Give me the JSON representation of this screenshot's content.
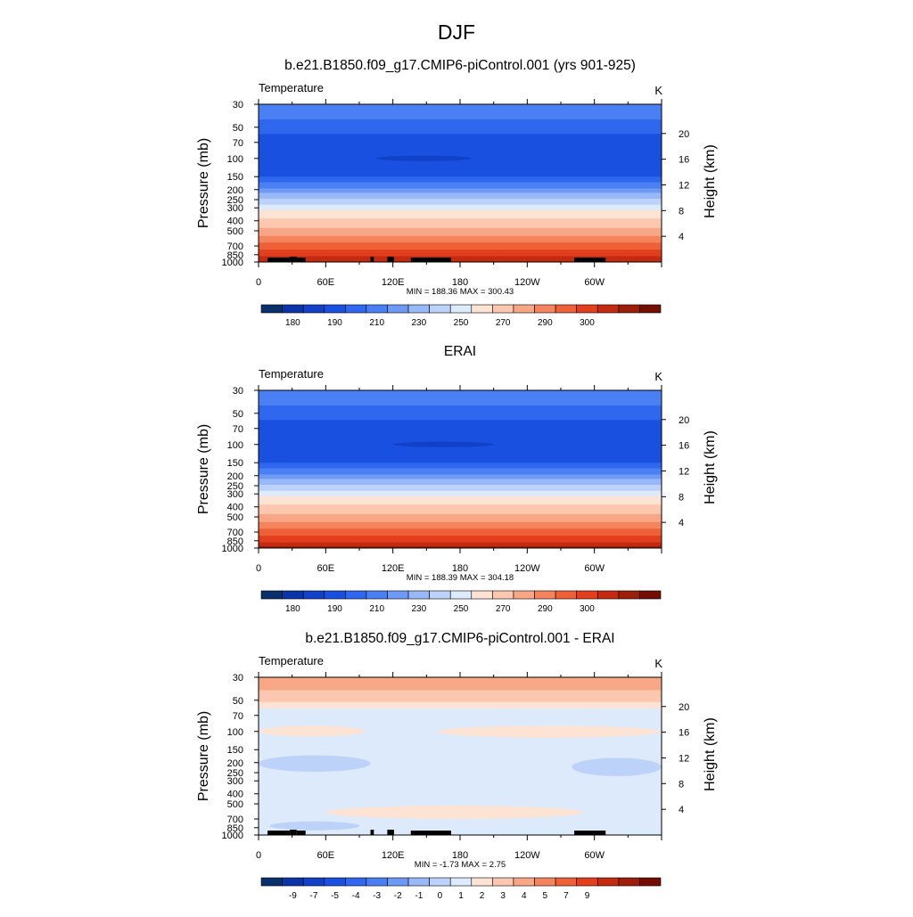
{
  "title": "DJF",
  "colors": {
    "palette": [
      "#08306b",
      "#0a34a8",
      "#1140c9",
      "#1a50e0",
      "#2f67ee",
      "#4a80f3",
      "#6e9af6",
      "#99b8f8",
      "#bcd2f9",
      "#ddeafc",
      "#fde3d3",
      "#fbc7ae",
      "#f8a786",
      "#f4845e",
      "#ee6038",
      "#e13f1d",
      "#c42a10",
      "#9c1d08",
      "#740e02"
    ]
  },
  "chart_data": [
    {
      "type": "heatmap",
      "subtitle": "b.e21.B1850.f09_g17.CMIP6-piControl.001 (yrs 901-925)",
      "variable": "Temperature",
      "units": "K",
      "ylabel": "Pressure (mb)",
      "y2label": "Height (km)",
      "x_ticks": [
        "0",
        "60E",
        "120E",
        "180",
        "120W",
        "60W"
      ],
      "x_tick_lons": [
        0,
        60,
        120,
        180,
        240,
        300
      ],
      "xlim": [
        0,
        360
      ],
      "y_ticks": [
        "30",
        "50",
        "70",
        "100",
        "150",
        "200",
        "250",
        "300",
        "400",
        "500",
        "700",
        "850",
        "1000"
      ],
      "y_tick_values": [
        30,
        50,
        70,
        100,
        150,
        200,
        250,
        300,
        400,
        500,
        700,
        850,
        1000
      ],
      "ylim": [
        1000,
        30
      ],
      "y_scale": "log",
      "y2_ticks": [
        "20",
        "16",
        "12",
        "8",
        "4"
      ],
      "y2_tick_values": [
        20,
        16,
        12,
        8,
        4
      ],
      "stats": "MIN = 188.36  MAX = 300.43",
      "colorbar_labels": [
        "180",
        "190",
        "210",
        "230",
        "250",
        "270",
        "290",
        "300"
      ],
      "levels": [
        {
          "p_top": 30,
          "color_index": 5
        },
        {
          "p_top": 42,
          "color_index": 4
        },
        {
          "p_top": 58,
          "color_index": 3
        },
        {
          "p_top": 150,
          "color_index": 4
        },
        {
          "p_top": 170,
          "color_index": 5
        },
        {
          "p_top": 195,
          "color_index": 6
        },
        {
          "p_top": 215,
          "color_index": 7
        },
        {
          "p_top": 245,
          "color_index": 8
        },
        {
          "p_top": 280,
          "color_index": 9
        },
        {
          "p_top": 315,
          "color_index": 10
        },
        {
          "p_top": 380,
          "color_index": 11
        },
        {
          "p_top": 470,
          "color_index": 12
        },
        {
          "p_top": 560,
          "color_index": 13
        },
        {
          "p_top": 650,
          "color_index": 14
        },
        {
          "p_top": 760,
          "color_index": 15
        },
        {
          "p_top": 880,
          "color_index": 16
        }
      ],
      "blobs": [
        {
          "lon": [
            105,
            190
          ],
          "p": [
            94,
            106
          ],
          "color_index": 2
        }
      ],
      "topography": [
        [
          8,
          28
        ],
        [
          28,
          34
        ],
        [
          34,
          42
        ],
        [
          100,
          103
        ],
        [
          115,
          121
        ],
        [
          136,
          172
        ],
        [
          282,
          310
        ]
      ]
    },
    {
      "type": "heatmap",
      "subtitle": "ERAI",
      "variable": "Temperature",
      "units": "K",
      "ylabel": "Pressure (mb)",
      "y2label": "Height (km)",
      "x_ticks": [
        "0",
        "60E",
        "120E",
        "180",
        "120W",
        "60W"
      ],
      "x_tick_lons": [
        0,
        60,
        120,
        180,
        240,
        300
      ],
      "xlim": [
        0,
        360
      ],
      "y_ticks": [
        "30",
        "50",
        "70",
        "100",
        "150",
        "200",
        "250",
        "300",
        "400",
        "500",
        "700",
        "850",
        "1000"
      ],
      "y_tick_values": [
        30,
        50,
        70,
        100,
        150,
        200,
        250,
        300,
        400,
        500,
        700,
        850,
        1000
      ],
      "ylim": [
        1000,
        30
      ],
      "y_scale": "log",
      "y2_ticks": [
        "20",
        "16",
        "12",
        "8",
        "4"
      ],
      "y2_tick_values": [
        20,
        16,
        12,
        8,
        4
      ],
      "stats": "MIN = 188.39  MAX = 304.18",
      "colorbar_labels": [
        "180",
        "190",
        "210",
        "230",
        "250",
        "270",
        "290",
        "300"
      ],
      "levels": [
        {
          "p_top": 30,
          "color_index": 5
        },
        {
          "p_top": 42,
          "color_index": 4
        },
        {
          "p_top": 58,
          "color_index": 3
        },
        {
          "p_top": 150,
          "color_index": 4
        },
        {
          "p_top": 170,
          "color_index": 5
        },
        {
          "p_top": 195,
          "color_index": 6
        },
        {
          "p_top": 215,
          "color_index": 7
        },
        {
          "p_top": 245,
          "color_index": 8
        },
        {
          "p_top": 280,
          "color_index": 9
        },
        {
          "p_top": 315,
          "color_index": 10
        },
        {
          "p_top": 380,
          "color_index": 11
        },
        {
          "p_top": 470,
          "color_index": 12
        },
        {
          "p_top": 560,
          "color_index": 13
        },
        {
          "p_top": 650,
          "color_index": 14
        },
        {
          "p_top": 760,
          "color_index": 15
        },
        {
          "p_top": 880,
          "color_index": 16
        },
        {
          "p_top": 960,
          "color_index": 17
        }
      ],
      "blobs": [
        {
          "lon": [
            120,
            210
          ],
          "p": [
            94,
            106
          ],
          "color_index": 2
        }
      ],
      "topography": []
    },
    {
      "type": "heatmap",
      "subtitle": "b.e21.B1850.f09_g17.CMIP6-piControl.001 - ERAI",
      "variable": "Temperature",
      "units": "K",
      "ylabel": "Pressure (mb)",
      "y2label": "Height (km)",
      "x_ticks": [
        "0",
        "60E",
        "120E",
        "180",
        "120W",
        "60W"
      ],
      "x_tick_lons": [
        0,
        60,
        120,
        180,
        240,
        300
      ],
      "xlim": [
        0,
        360
      ],
      "y_ticks": [
        "30",
        "50",
        "70",
        "100",
        "150",
        "200",
        "250",
        "300",
        "400",
        "500",
        "700",
        "850",
        "1000"
      ],
      "y_tick_values": [
        30,
        50,
        70,
        100,
        150,
        200,
        250,
        300,
        400,
        500,
        700,
        850,
        1000
      ],
      "ylim": [
        1000,
        30
      ],
      "y_scale": "log",
      "y2_ticks": [
        "20",
        "16",
        "12",
        "8",
        "4"
      ],
      "y2_tick_values": [
        20,
        16,
        12,
        8,
        4
      ],
      "stats": "MIN =  -1.73  MAX =   2.75",
      "colorbar_labels": [
        "-9",
        "-7",
        "-5",
        "-4",
        "-3",
        "-2",
        "-1",
        "0",
        "1",
        "2",
        "3",
        "4",
        "5",
        "7",
        "9"
      ],
      "levels": [
        {
          "p_top": 30,
          "color_index": 12
        },
        {
          "p_top": 40,
          "color_index": 11
        },
        {
          "p_top": 52,
          "color_index": 10
        },
        {
          "p_top": 60,
          "color_index": 9
        }
      ],
      "blobs": [
        {
          "lon": [
            0,
            95
          ],
          "p": [
            88,
            112
          ],
          "color_index": 10
        },
        {
          "lon": [
            160,
            360
          ],
          "p": [
            88,
            115
          ],
          "color_index": 10
        },
        {
          "lon": [
            0,
            100
          ],
          "p": [
            170,
            245
          ],
          "color_index": 8
        },
        {
          "lon": [
            280,
            360
          ],
          "p": [
            180,
            270
          ],
          "color_index": 8
        },
        {
          "lon": [
            60,
            290
          ],
          "p": [
            520,
            700
          ],
          "color_index": 10
        },
        {
          "lon": [
            10,
            90
          ],
          "p": [
            740,
            900
          ],
          "color_index": 8
        }
      ],
      "topography": [
        [
          8,
          28
        ],
        [
          28,
          34
        ],
        [
          34,
          42
        ],
        [
          100,
          103
        ],
        [
          115,
          121
        ],
        [
          136,
          172
        ],
        [
          282,
          310
        ]
      ]
    }
  ]
}
